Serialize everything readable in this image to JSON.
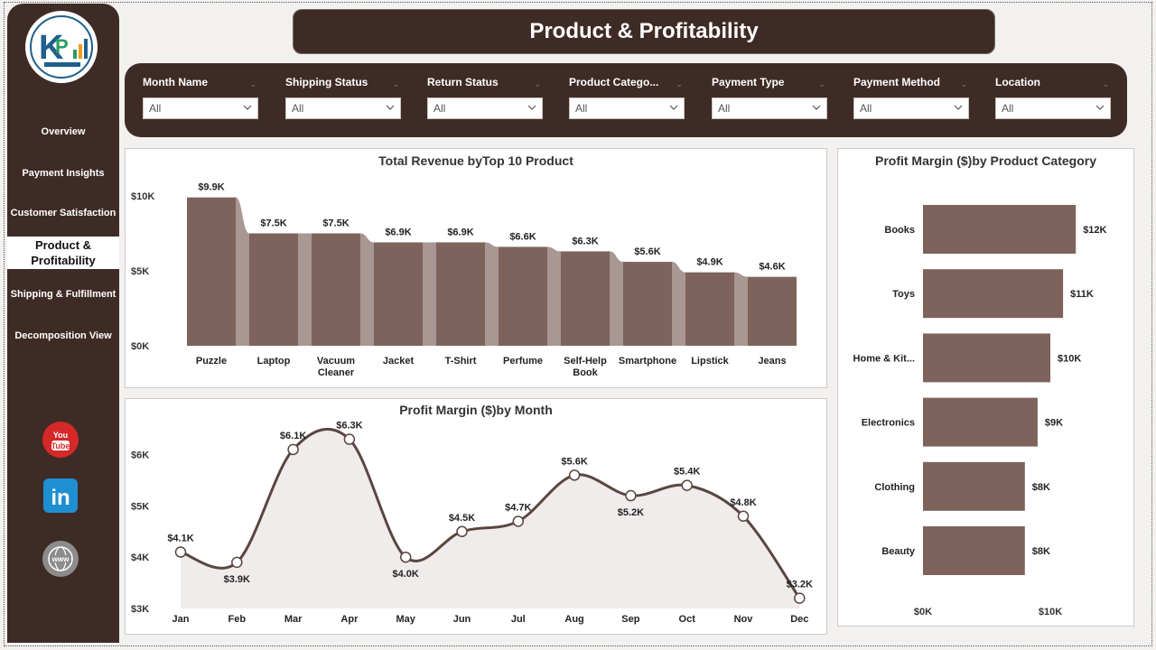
{
  "title": "Product & Profitability",
  "nav": [
    {
      "label": "Overview"
    },
    {
      "label": "Payment Insights"
    },
    {
      "label": "Customer Satisfaction"
    },
    {
      "label": "Product & Profitability",
      "line1": "Product &",
      "line2": "Profitability",
      "active": true
    },
    {
      "label": "Shipping & Fulfillment"
    },
    {
      "label": "Decomposition View"
    }
  ],
  "social": {
    "youtube": "You Tube",
    "linkedin": "in",
    "web": "www"
  },
  "filters": [
    {
      "label": "Month Name",
      "value": "All"
    },
    {
      "label": "Shipping Status",
      "value": "All"
    },
    {
      "label": "Return Status",
      "value": "All"
    },
    {
      "label": "Product Catego...",
      "value": "All"
    },
    {
      "label": "Payment Type",
      "value": "All"
    },
    {
      "label": "Payment Method",
      "value": "All"
    },
    {
      "label": "Location",
      "value": "All"
    }
  ],
  "colors": {
    "brand": "#3f2b25",
    "bar": "#7d635b",
    "ribbon": "#a89793",
    "line": "#5a4640"
  },
  "chart_data": [
    {
      "type": "bar",
      "title": "Total Revenue byTop 10 Product",
      "categories": [
        "Puzzle",
        "Laptop",
        "Vacuum Cleaner",
        "Jacket",
        "T-Shirt",
        "Perfume",
        "Self-Help Book",
        "Smartphone",
        "Lipstick",
        "Jeans"
      ],
      "category_lines": [
        [
          "Puzzle"
        ],
        [
          "Laptop"
        ],
        [
          "Vacuum",
          "Cleaner"
        ],
        [
          "Jacket"
        ],
        [
          "T-Shirt"
        ],
        [
          "Perfume"
        ],
        [
          "Self-Help",
          "Book"
        ],
        [
          "Smartphone"
        ],
        [
          "Lipstick"
        ],
        [
          "Jeans"
        ]
      ],
      "values": [
        9.9,
        7.5,
        7.5,
        6.9,
        6.9,
        6.6,
        6.3,
        5.6,
        4.9,
        4.6
      ],
      "labels": [
        "$9.9K",
        "$7.5K",
        "$7.5K",
        "$6.9K",
        "$6.9K",
        "$6.6K",
        "$6.3K",
        "$5.6K",
        "$4.9K",
        "$4.6K"
      ],
      "ylim": [
        0,
        10
      ],
      "yticks": [
        "$0K",
        "$5K",
        "$10K"
      ],
      "unit": "K"
    },
    {
      "type": "line",
      "title": "Profit Margin ($)by Month",
      "categories": [
        "Jan",
        "Feb",
        "Mar",
        "Apr",
        "May",
        "Jun",
        "Jul",
        "Aug",
        "Sep",
        "Oct",
        "Nov",
        "Dec"
      ],
      "values": [
        4.1,
        3.9,
        6.1,
        6.3,
        4.0,
        4.5,
        4.7,
        5.6,
        5.2,
        5.4,
        4.8,
        3.2
      ],
      "labels": [
        "$4.1K",
        "$3.9K",
        "$6.1K",
        "$6.3K",
        "$4.0K",
        "$4.5K",
        "$4.7K",
        "$5.6K",
        "$5.2K",
        "$5.4K",
        "$4.8K",
        "$3.2K"
      ],
      "ylim": [
        3,
        6.5
      ],
      "yticks": [
        "$3K",
        "$4K",
        "$5K",
        "$6K"
      ]
    },
    {
      "type": "bar",
      "orientation": "horizontal",
      "title": "Profit Margin ($)by Product Category",
      "categories": [
        "Books",
        "Toys",
        "Home & Kit...",
        "Electronics",
        "Clothing",
        "Beauty"
      ],
      "values": [
        12,
        11,
        10,
        9,
        8,
        8
      ],
      "labels": [
        "$12K",
        "$11K",
        "$10K",
        "$9K",
        "$8K",
        "$8K"
      ],
      "xticks": [
        "$0K",
        "$10K"
      ]
    }
  ]
}
